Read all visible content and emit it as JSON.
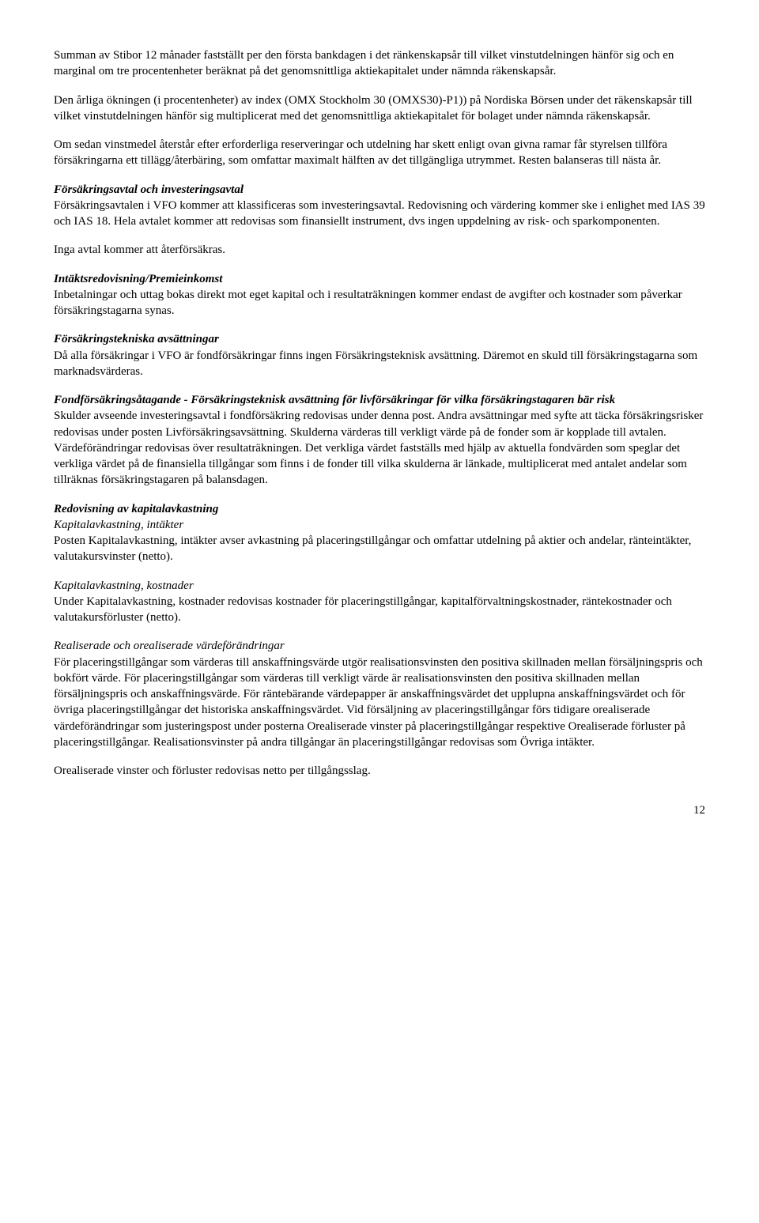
{
  "p1": "Summan av Stibor 12 månader fastställt per den första bankdagen i det ränkenskapsår till vilket vinstutdelningen hänför sig och en marginal om tre procentenheter beräknat på det genomsnittliga aktiekapitalet under nämnda räkenskapsår.",
  "p2": "Den årliga ökningen (i procentenheter) av index (OMX Stockholm 30 (OMXS30)-P1)) på Nordiska Börsen under det räkenskapsår till vilket vinstutdelningen hänför sig multiplicerat med det genomsnittliga aktiekapitalet för bolaget under nämnda räkenskapsår.",
  "p3": "Om sedan vinstmedel återstår efter erforderliga reserveringar och utdelning har skett enligt ovan givna ramar får styrelsen tillföra försäkringarna ett tillägg/återbäring, som omfattar maximalt hälften av det tillgängliga utrymmet. Resten balanseras till nästa år.",
  "s1_title": "Försäkringsavtal och investeringsavtal",
  "s1_body": "Försäkringsavtalen i VFO kommer att klassificeras som investeringsavtal. Redovisning och värdering kommer ske i enlighet med IAS 39 och IAS 18. Hela avtalet kommer att redovisas som finansiellt instrument, dvs ingen uppdelning av risk- och sparkomponenten.",
  "s1_body2": "Inga avtal kommer att återförsäkras.",
  "s2_title": "Intäktsredovisning/Premieinkomst",
  "s2_body": "Inbetalningar och uttag bokas direkt mot eget kapital och i resultaträkningen kommer endast de avgifter och kostnader som påverkar försäkringstagarna synas.",
  "s3_title": "Försäkringstekniska avsättningar",
  "s3_body": "Då alla försäkringar i VFO är fondförsäkringar finns ingen Försäkringsteknisk avsättning. Däremot en skuld till försäkringstagarna som marknadsvärderas.",
  "s4_title": "Fondförsäkringsåtagande - Försäkringsteknisk avsättning för livförsäkringar för vilka försäkringstagaren bär risk",
  "s4_body": "Skulder avseende investeringsavtal i fondförsäkring redovisas under denna post. Andra avsättningar med syfte att täcka försäkringsrisker redovisas under posten Livförsäkringsavsättning. Skulderna värderas till verkligt värde på de fonder som är kopplade till avtalen. Värdeförändringar redovisas över resultaträkningen. Det verkliga värdet fastställs med hjälp av aktuella fondvärden som speglar det verkliga värdet på de finansiella tillgångar som finns i de fonder till vilka skulderna är länkade, multiplicerat med antalet andelar som tillräknas försäkringstagaren på balansdagen.",
  "s5_title": "Redovisning av kapitalavkastning",
  "s5_sub1": "Kapitalavkastning, intäkter",
  "s5_body1": "Posten Kapitalavkastning, intäkter avser avkastning på placeringstillgångar och omfattar utdelning på aktier och andelar, ränteintäkter, valutakursvinster (netto).",
  "s5_sub2": "Kapitalavkastning, kostnader",
  "s5_body2": "Under Kapitalavkastning, kostnader redovisas kostnader för placeringstillgångar, kapitalförvaltningskostnader, räntekostnader och valutakursförluster (netto).",
  "s5_sub3": "Realiserade och orealiserade värdeförändringar",
  "s5_body3": "För placeringstillgångar som värderas till anskaffningsvärde utgör realisationsvinsten den positiva skillnaden mellan försäljningspris och bokfört värde. För placeringstillgångar som värderas till verkligt värde är realisationsvinsten den positiva skillnaden mellan försäljningspris och anskaffningsvärde. För räntebärande värdepapper är anskaffningsvärdet det upplupna anskaffningsvärdet och för övriga placeringstillgångar det historiska anskaffningsvärdet. Vid försäljning av placeringstillgångar förs tidigare orealiserade värdeförändringar som justeringspost under posterna Orealiserade vinster på placeringstillgångar respektive Orealiserade förluster på placeringstillgångar. Realisationsvinster på andra tillgångar än placeringstillgångar redovisas som Övriga intäkter.",
  "s5_body4": "Orealiserade vinster och förluster redovisas netto per tillgångsslag.",
  "page_number": "12"
}
